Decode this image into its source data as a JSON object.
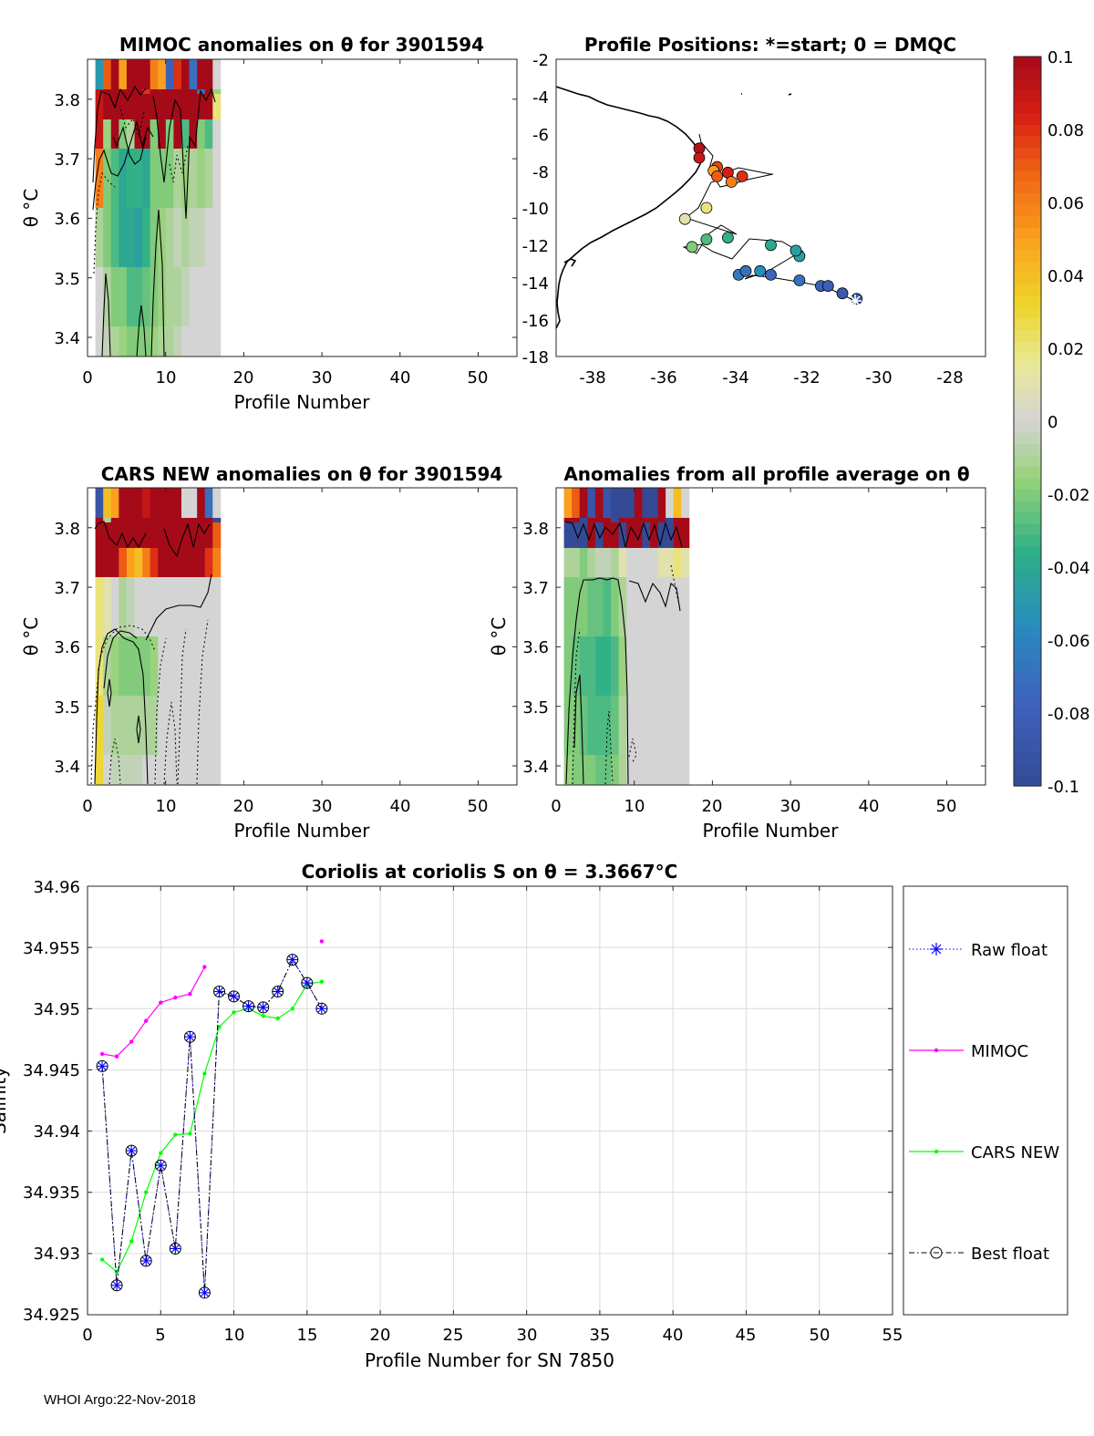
{
  "footer": "WHOI Argo:22-Nov-2018",
  "panels": {
    "mimoc": {
      "title": "MIMOC anomalies on θ  for 3901594",
      "xlabel": "Profile Number",
      "ylabel": "θ °C",
      "xticks": [
        "0",
        "10",
        "20",
        "30",
        "40",
        "50"
      ],
      "yticks": [
        "3.4",
        "3.5",
        "3.6",
        "3.7",
        "3.8"
      ]
    },
    "positions": {
      "title": "Profile Positions: *=start; 0 = DMQC",
      "xticks": [
        "-38",
        "-36",
        "-34",
        "-32",
        "-30",
        "-28"
      ],
      "yticks": [
        "-2",
        "-4",
        "-6",
        "-8",
        "-10",
        "-12",
        "-14",
        "-16",
        "-18"
      ]
    },
    "cars": {
      "title": "CARS NEW anomalies on θ for 3901594",
      "xlabel": "Profile Number",
      "ylabel": "θ °C",
      "xticks": [
        "0",
        "10",
        "20",
        "30",
        "40",
        "50"
      ],
      "yticks": [
        "3.4",
        "3.5",
        "3.6",
        "3.7",
        "3.8"
      ]
    },
    "allavg": {
      "title": "Anomalies from all profile average on θ",
      "xlabel": "Profile Number",
      "ylabel": "θ °C",
      "xticks": [
        "0",
        "10",
        "20",
        "30",
        "40",
        "50"
      ],
      "yticks": [
        "3.4",
        "3.5",
        "3.6",
        "3.7",
        "3.8"
      ]
    },
    "colorbar": {
      "ticks": [
        "0.1",
        "0.08",
        "0.06",
        "0.04",
        "0.02",
        "0",
        "-0.02",
        "-0.04",
        "-0.06",
        "-0.08",
        "-0.1"
      ],
      "range": [
        -0.1,
        0.1
      ]
    },
    "coriolis": {
      "title": "Coriolis at coriolis S on θ = 3.3667°C",
      "xlabel": "Profile Number for SN 7850",
      "ylabel": "Salinity",
      "xticks": [
        "0",
        "5",
        "10",
        "15",
        "20",
        "25",
        "30",
        "35",
        "40",
        "45",
        "50",
        "55"
      ],
      "yticks": [
        "34.96",
        "34.955",
        "34.95",
        "34.945",
        "34.94",
        "34.935",
        "34.93",
        "34.925"
      ],
      "legend": [
        "Raw float",
        "MIMOC",
        "CARS NEW",
        "Best float"
      ]
    }
  },
  "chart_data": [
    {
      "type": "line",
      "title": "Coriolis at coriolis S on θ = 3.3667°C",
      "xlabel": "Profile Number for SN 7850",
      "ylabel": "Salinity",
      "xlim": [
        0,
        55
      ],
      "ylim": [
        34.925,
        34.96
      ],
      "grid": true,
      "legend_position": "right",
      "series": [
        {
          "name": "Raw float",
          "color": "#0000ff",
          "x": [
            1,
            2,
            3,
            4,
            5,
            6,
            7,
            8,
            9,
            10,
            11,
            12,
            13,
            14,
            15,
            16
          ],
          "y": [
            34.9453,
            34.9274,
            34.9384,
            34.9294,
            34.9372,
            34.9304,
            34.9477,
            34.9268,
            34.9514,
            34.951,
            34.9502,
            34.9501,
            34.9514,
            34.954,
            34.9521,
            34.95
          ]
        },
        {
          "name": "MIMOC",
          "color": "#ff00ff",
          "x": [
            1,
            2,
            3,
            4,
            5,
            6,
            7,
            8,
            16
          ],
          "y": [
            34.9463,
            34.9461,
            34.9473,
            34.949,
            34.9505,
            34.9509,
            34.9512,
            34.9534,
            34.9555
          ]
        },
        {
          "name": "CARS NEW",
          "color": "#00ff00",
          "x": [
            1,
            2,
            3,
            4,
            5,
            6,
            7,
            8,
            9,
            10,
            11,
            12,
            13,
            14,
            15,
            16
          ],
          "y": [
            34.9295,
            34.9285,
            34.931,
            34.935,
            34.9382,
            34.9397,
            34.9398,
            34.9447,
            34.9485,
            34.9497,
            34.95,
            34.9494,
            34.9492,
            34.95,
            34.952,
            34.9522
          ]
        },
        {
          "name": "Best float",
          "color": "#000000",
          "x": [
            1,
            2,
            3,
            4,
            5,
            6,
            7,
            8,
            9,
            10,
            11,
            12,
            13,
            14,
            15,
            16
          ],
          "y": [
            34.9453,
            34.9274,
            34.9384,
            34.9294,
            34.9372,
            34.9304,
            34.9477,
            34.9268,
            34.9514,
            34.951,
            34.9502,
            34.9501,
            34.9514,
            34.954,
            34.9521,
            34.95
          ]
        }
      ]
    },
    {
      "type": "scatter",
      "title": "Profile Positions: *=start; 0 = DMQC",
      "xlim": [
        -39,
        -27
      ],
      "ylim": [
        -18,
        -2
      ],
      "color_range": [
        -0.1,
        0.1
      ],
      "points": {
        "lon": [
          -30.6,
          -31.0,
          -31.4,
          -31.6,
          -32.2,
          -33.0,
          -33.7,
          -33.9,
          -33.3,
          -32.3,
          -32.2,
          -33.0,
          -34.2,
          -34.8,
          -35.2,
          -35.4,
          -34.8,
          -34.1,
          -34.5,
          -34.6,
          -35.0,
          -35.0,
          -34.2,
          -33.8,
          -34.5
        ],
        "lat": [
          -14.9,
          -14.6,
          -14.2,
          -14.2,
          -13.9,
          -13.6,
          -13.4,
          -13.6,
          -13.4,
          -12.3,
          -12.6,
          -12.0,
          -11.6,
          -11.7,
          -12.1,
          -10.6,
          -10.0,
          -8.6,
          -8.3,
          -8.0,
          -7.3,
          -6.8,
          -8.1,
          -8.3,
          -7.8
        ],
        "value": [
          -0.09,
          -0.085,
          -0.08,
          -0.08,
          -0.07,
          -0.075,
          -0.07,
          -0.065,
          -0.055,
          -0.045,
          -0.045,
          -0.04,
          -0.035,
          -0.03,
          -0.02,
          0.01,
          0.02,
          0.06,
          0.07,
          0.05,
          0.09,
          0.095,
          0.085,
          0.08,
          0.075
        ]
      }
    },
    {
      "type": "heatmap",
      "title": "MIMOC anomalies on θ  for 3901594",
      "xlim": [
        0,
        55
      ],
      "ylim": [
        3.37,
        3.865
      ],
      "profiles": 16,
      "theta_levels": [
        3.845,
        3.81,
        3.79,
        3.745,
        3.695,
        3.63,
        3.55,
        3.45,
        3.39
      ]
    },
    {
      "type": "heatmap",
      "title": "CARS NEW anomalies on θ for 3901594",
      "xlim": [
        0,
        55
      ],
      "ylim": [
        3.37,
        3.865
      ],
      "profiles": 16,
      "theta_levels": [
        3.845,
        3.81,
        3.79,
        3.745,
        3.695,
        3.63,
        3.55,
        3.45,
        3.39
      ]
    },
    {
      "type": "heatmap",
      "title": "Anomalies from all profile average on θ",
      "xlim": [
        0,
        55
      ],
      "ylim": [
        3.37,
        3.865
      ],
      "profiles": 16,
      "theta_levels": [
        3.845,
        3.81,
        3.79,
        3.745,
        3.695,
        3.63,
        3.55,
        3.45,
        3.39
      ]
    }
  ],
  "heatmaps": {
    "mimoc": [
      [
        -0.05,
        0.07,
        0.1,
        0.05,
        0.1,
        0.1,
        0.1,
        0.06,
        0.05,
        -0.08,
        0.08,
        0.1,
        -0.07,
        0.1,
        0.1,
        0
      ],
      [
        0.09,
        0.1,
        0.1,
        0.1,
        0.1,
        0.1,
        0.08,
        0.1,
        0.1,
        0.1,
        0.1,
        0.1,
        0.1,
        -0.07,
        0.1,
        -0.015
      ],
      [
        0.09,
        0.1,
        0.1,
        0.1,
        0.1,
        0.1,
        0.1,
        0.1,
        0.1,
        0.1,
        0.1,
        0.1,
        0.1,
        0.1,
        0.1,
        0.02
      ],
      [
        0.09,
        -0.015,
        0.1,
        -0.02,
        -0.01,
        0.1,
        0.1,
        -0.02,
        0.1,
        -0.02,
        0.1,
        -0.03,
        0.1,
        -0.02,
        -0.03,
        0
      ],
      [
        0.06,
        -0.02,
        -0.03,
        -0.04,
        -0.035,
        -0.035,
        -0.04,
        -0.02,
        -0.02,
        -0.02,
        -0.01,
        -0.015,
        -0.01,
        -0.015,
        -0.01,
        0
      ],
      [
        -0.01,
        -0.02,
        -0.03,
        -0.04,
        -0.04,
        -0.045,
        -0.035,
        -0.02,
        -0.015,
        -0.01,
        -0.005,
        -0.01,
        -0.005,
        -0.005,
        0,
        0
      ],
      [
        0,
        -0.01,
        -0.02,
        -0.02,
        -0.03,
        -0.03,
        -0.025,
        -0.02,
        -0.015,
        -0.01,
        -0.01,
        -0.005,
        0,
        0,
        0,
        0
      ],
      [
        0,
        -0.005,
        -0.01,
        -0.015,
        -0.02,
        -0.02,
        -0.02,
        -0.015,
        -0.01,
        -0.01,
        -0.005,
        0,
        0,
        0,
        0,
        0
      ],
      [
        0,
        0,
        -0.005,
        -0.01,
        -0.015,
        -0.015,
        -0.01,
        -0.01,
        -0.005,
        null,
        null,
        null,
        null,
        null,
        null,
        0
      ]
    ],
    "cars": [
      [
        -0.09,
        0.04,
        0.05,
        0.1,
        0.1,
        0.1,
        0.09,
        0.1,
        0.1,
        0.1,
        0.1,
        0,
        0,
        0.1,
        -0.07,
        0
      ],
      [
        0.1,
        -0.01,
        0.1,
        0.1,
        0.1,
        0.1,
        0.1,
        0.1,
        0.1,
        0.1,
        0.1,
        0.1,
        0.1,
        0.1,
        0.1,
        -0.1
      ],
      [
        0.1,
        0.1,
        0.1,
        0.1,
        0.1,
        0.1,
        0.1,
        0.1,
        0.1,
        0.1,
        0.1,
        0.1,
        0.1,
        0.1,
        0.1,
        0.07
      ],
      [
        0.1,
        0.1,
        0.1,
        0.07,
        0.05,
        0.04,
        0.06,
        0.08,
        0.1,
        0.1,
        0.1,
        0.1,
        0.1,
        0.1,
        0.08,
        0.06
      ],
      [
        0.02,
        0.01,
        0,
        -0.01,
        -0.005,
        0,
        0,
        0,
        0,
        0,
        0,
        0,
        0,
        0,
        0,
        0
      ],
      [
        0.02,
        -0.01,
        -0.015,
        -0.02,
        -0.02,
        -0.02,
        -0.02,
        -0.015,
        0,
        0,
        0,
        0,
        0,
        0,
        0,
        0
      ],
      [
        0.03,
        -0.005,
        -0.01,
        -0.01,
        -0.01,
        -0.01,
        -0.01,
        -0.01,
        0,
        0,
        0,
        0,
        0,
        0,
        0,
        0
      ],
      [
        0.03,
        0,
        -0.005,
        -0.005,
        -0.005,
        -0.005,
        0,
        0,
        0,
        0,
        0,
        0,
        0,
        0,
        0,
        0
      ],
      [
        0.02,
        0,
        0,
        0,
        0,
        0,
        0,
        0,
        0,
        0,
        0,
        0,
        0,
        0,
        0,
        0
      ]
    ],
    "allavg": [
      [
        0.05,
        0.07,
        0.1,
        -0.09,
        0.1,
        -0.09,
        -0.1,
        -0.1,
        -0.1,
        0.1,
        -0.1,
        -0.1,
        0.1,
        0,
        0.04,
        0
      ],
      [
        0.1,
        0.1,
        -0.1,
        0.1,
        0.1,
        0.1,
        -0.1,
        0.1,
        0.1,
        0.1,
        0.1,
        0.1,
        0.1,
        -0.1,
        0.1,
        0.1
      ],
      [
        -0.1,
        -0.1,
        -0.1,
        0.1,
        -0.1,
        0.1,
        0.1,
        -0.1,
        0.1,
        0.1,
        -0.1,
        0.1,
        -0.1,
        -0.1,
        0.1,
        0.1
      ],
      [
        -0.01,
        -0.01,
        -0.02,
        -0.01,
        -0.005,
        -0.005,
        -0.01,
        0.01,
        0,
        0,
        0,
        0,
        0.01,
        0.01,
        0.02,
        0.01
      ],
      [
        -0.02,
        -0.02,
        -0.02,
        -0.025,
        -0.025,
        -0.03,
        -0.02,
        -0.01,
        0,
        0,
        0,
        0,
        0,
        0,
        0,
        0
      ],
      [
        -0.02,
        -0.025,
        -0.03,
        -0.03,
        -0.035,
        -0.035,
        -0.03,
        -0.015,
        0,
        0,
        0,
        0,
        0,
        0,
        0,
        0
      ],
      [
        -0.02,
        -0.02,
        -0.025,
        -0.03,
        -0.03,
        -0.03,
        -0.025,
        -0.01,
        0,
        0,
        0,
        0,
        0,
        0,
        0,
        0
      ],
      [
        -0.015,
        -0.02,
        -0.02,
        -0.02,
        -0.025,
        -0.025,
        -0.02,
        -0.01,
        0,
        0,
        0,
        0,
        0,
        0,
        0,
        0
      ],
      [
        -0.01,
        -0.015,
        -0.015,
        -0.02,
        -0.02,
        -0.02,
        -0.015,
        -0.005,
        0,
        0,
        0,
        0,
        0,
        0,
        0,
        0
      ]
    ]
  }
}
